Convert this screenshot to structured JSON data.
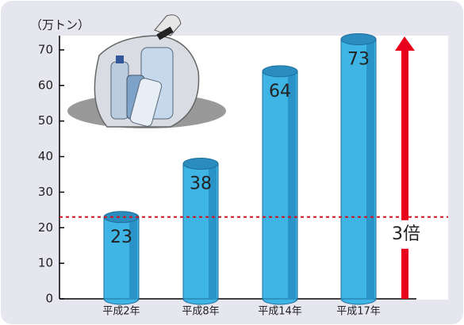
{
  "chart_data": {
    "type": "bar",
    "y_unit_label": "（万トン）",
    "categories": [
      "平成2年",
      "平成8年",
      "平成14年",
      "平成17年"
    ],
    "values": [
      23,
      38,
      64,
      73
    ],
    "color": "#3fb5e6",
    "ylim": [
      0,
      74
    ],
    "yticks": [
      0,
      10,
      20,
      30,
      40,
      50,
      60,
      70
    ],
    "reference_line": 23,
    "annotation": "3倍",
    "grid": false
  }
}
